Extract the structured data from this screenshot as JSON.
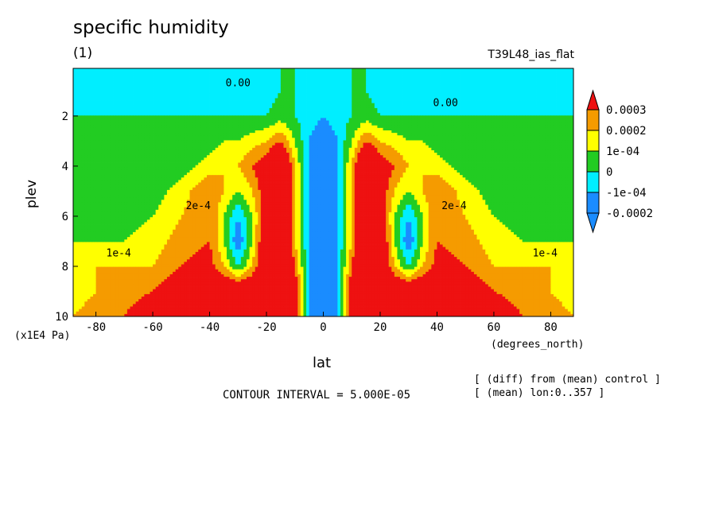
{
  "chart_data": {
    "type": "heatmap",
    "title": "specific humidity",
    "subtitle": "(1)",
    "run_label": "T39L48_ias_flat",
    "xlabel": "lat",
    "ylabel": "plev",
    "x_units": "(degrees_north)",
    "y_units": "(x1E4 Pa)",
    "xlim": [
      -88,
      88
    ],
    "ylim": [
      10,
      0.1
    ],
    "x_ticks": [
      -80,
      -60,
      -40,
      -20,
      0,
      20,
      40,
      60,
      80
    ],
    "y_ticks": [
      2,
      4,
      6,
      8,
      10
    ],
    "contour_interval": "CONTOUR INTERVAL = 5.000E-05",
    "notes": [
      "[ (diff) from (mean) control ]",
      "[ (mean) lon:0..357 ]"
    ],
    "colorbar": {
      "levels": [
        "0.0003",
        "0.0002",
        "1e-04",
        "0",
        "-1e-04",
        "-0.0002"
      ],
      "colors": [
        "#ee1111",
        "#f59b00",
        "#ffff00",
        "#22cc22",
        "#00eeff",
        "#1a8cff",
        "#1111cc"
      ]
    },
    "contour_labels": [
      {
        "text": "0.00",
        "lat": -30,
        "plev": 0.7
      },
      {
        "text": "0.00",
        "lat": 43,
        "plev": 1.5
      },
      {
        "text": "2e-4",
        "lat": -44,
        "plev": 5.6
      },
      {
        "text": "1e-4",
        "lat": -72,
        "plev": 7.5
      },
      {
        "text": "2e-4",
        "lat": 46,
        "plev": 5.6
      },
      {
        "text": "1e-4",
        "lat": 78,
        "plev": 7.5
      }
    ],
    "field": {
      "lat": [
        -88,
        -80,
        -70,
        -60,
        -50,
        -40,
        -35,
        -30,
        -25,
        -20,
        -15,
        -10,
        -5,
        0,
        5,
        10,
        15,
        20,
        25,
        30,
        35,
        40,
        50,
        60,
        70,
        80,
        88
      ],
      "plev": [
        0.1,
        1,
        2,
        3,
        4,
        5,
        6,
        7,
        8,
        9,
        10
      ],
      "values": [
        [
          0,
          0,
          0,
          0,
          0,
          0,
          0,
          0,
          0,
          0,
          0,
          0,
          -0.5,
          -1,
          -0.5,
          0,
          0,
          0,
          0,
          0,
          0,
          0,
          0,
          0,
          0,
          0,
          0
        ],
        [
          -1,
          -1,
          -1,
          -1,
          -1,
          -1,
          -1,
          -1,
          -1,
          -0.5,
          0,
          0,
          -0.5,
          -1,
          -0.5,
          0,
          0,
          -0.5,
          -1,
          -1,
          -1,
          -1,
          -1,
          -1,
          -1,
          -1,
          -1
        ],
        [
          0,
          0,
          0,
          0,
          0,
          0,
          0,
          0,
          0,
          0,
          0.5,
          0,
          -0.5,
          -1,
          -0.5,
          0,
          0.5,
          0,
          0,
          0,
          0,
          0,
          0,
          0,
          0,
          0,
          0
        ],
        [
          0,
          0,
          0,
          0,
          0,
          0.5,
          1,
          1,
          1.5,
          2,
          3,
          1,
          -1,
          -2,
          -1,
          1,
          3,
          2,
          1.5,
          1,
          1,
          0.5,
          0,
          0,
          0,
          0,
          0
        ],
        [
          0,
          0,
          0,
          0,
          0.5,
          1.5,
          2,
          2,
          3,
          4,
          6,
          2,
          -1,
          -2,
          -1,
          2,
          6,
          4,
          3,
          2,
          2,
          1.5,
          0.5,
          0,
          0,
          0,
          0
        ],
        [
          0,
          0,
          0,
          0.5,
          1.5,
          3,
          2,
          1,
          2,
          4,
          6,
          2,
          -1,
          -2,
          -1,
          2,
          6,
          4,
          2,
          1,
          2,
          3,
          1.5,
          0.5,
          0,
          0,
          0
        ],
        [
          0,
          0,
          0.5,
          1,
          2,
          3,
          1,
          -1,
          1,
          4,
          6,
          2,
          -1,
          -2,
          -1,
          2,
          6,
          4,
          1,
          -1,
          1,
          3,
          2,
          1,
          0.5,
          0,
          0
        ],
        [
          1,
          1,
          1,
          1.5,
          2.5,
          3,
          1,
          -2,
          1,
          5,
          6,
          2,
          -1,
          -2,
          -1,
          2,
          6,
          5,
          1,
          -2,
          1,
          3,
          2.5,
          1.5,
          1,
          1,
          1
        ],
        [
          2,
          2,
          2,
          2,
          3,
          3.5,
          2,
          0,
          2,
          5,
          6,
          3,
          -1,
          -2,
          -1,
          3,
          6,
          5,
          2,
          0,
          2,
          3.5,
          3,
          2,
          2,
          2,
          2
        ],
        [
          1.5,
          2,
          2.5,
          3,
          4,
          5,
          5,
          5,
          5,
          6,
          6,
          4,
          -1,
          -2,
          -1,
          4,
          6,
          6,
          5,
          5,
          5,
          5,
          4,
          3,
          2.5,
          2,
          1.5
        ],
        [
          2,
          2.5,
          3,
          4,
          5,
          6,
          6,
          6,
          6,
          6,
          6,
          4,
          -1,
          -2,
          -1,
          4,
          6,
          6,
          6,
          6,
          6,
          6,
          5,
          4,
          3,
          2.5,
          2
        ]
      ]
    }
  }
}
